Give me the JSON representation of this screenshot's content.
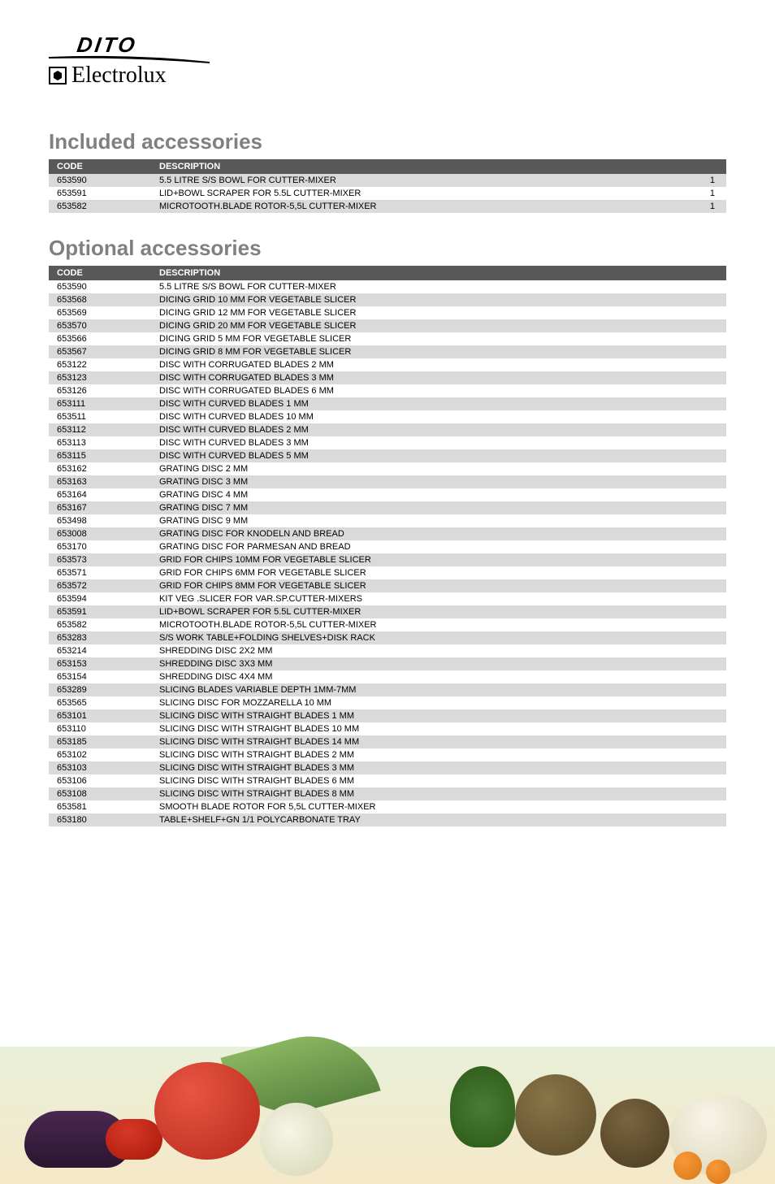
{
  "logo": {
    "dito": "DITO",
    "electrolux": "Electrolux"
  },
  "sections": {
    "included": {
      "title": "Included accessories",
      "columns": [
        "CODE",
        "DESCRIPTION"
      ],
      "rows": [
        {
          "code": "653590",
          "desc": "5.5 LITRE S/S BOWL FOR CUTTER-MIXER",
          "qty": "1"
        },
        {
          "code": "653591",
          "desc": "LID+BOWL SCRAPER FOR 5.5L CUTTER-MIXER",
          "qty": "1"
        },
        {
          "code": "653582",
          "desc": "MICROTOOTH.BLADE ROTOR-5,5L CUTTER-MIXER",
          "qty": "1"
        }
      ]
    },
    "optional": {
      "title": "Optional accessories",
      "columns": [
        "CODE",
        "DESCRIPTION"
      ],
      "rows": [
        {
          "code": "653590",
          "desc": "5.5 LITRE S/S BOWL FOR CUTTER-MIXER"
        },
        {
          "code": "653568",
          "desc": "DICING GRID 10 MM FOR VEGETABLE SLICER"
        },
        {
          "code": "653569",
          "desc": "DICING GRID 12 MM FOR VEGETABLE SLICER"
        },
        {
          "code": "653570",
          "desc": "DICING GRID 20 MM FOR VEGETABLE SLICER"
        },
        {
          "code": "653566",
          "desc": "DICING GRID 5 MM FOR VEGETABLE SLICER"
        },
        {
          "code": "653567",
          "desc": "DICING GRID 8 MM FOR VEGETABLE SLICER"
        },
        {
          "code": "653122",
          "desc": "DISC WITH CORRUGATED BLADES 2 MM"
        },
        {
          "code": "653123",
          "desc": "DISC WITH CORRUGATED BLADES 3 MM"
        },
        {
          "code": "653126",
          "desc": "DISC WITH CORRUGATED BLADES 6 MM"
        },
        {
          "code": "653111",
          "desc": "DISC WITH CURVED BLADES 1 MM"
        },
        {
          "code": "653511",
          "desc": "DISC WITH CURVED BLADES 10 MM"
        },
        {
          "code": "653112",
          "desc": "DISC WITH CURVED BLADES 2 MM"
        },
        {
          "code": "653113",
          "desc": "DISC WITH CURVED BLADES 3 MM"
        },
        {
          "code": "653115",
          "desc": "DISC WITH CURVED BLADES 5 MM"
        },
        {
          "code": "653162",
          "desc": "GRATING DISC 2 MM"
        },
        {
          "code": "653163",
          "desc": "GRATING DISC 3 MM"
        },
        {
          "code": "653164",
          "desc": "GRATING DISC 4 MM"
        },
        {
          "code": "653167",
          "desc": "GRATING DISC 7 MM"
        },
        {
          "code": "653498",
          "desc": "GRATING DISC 9 MM"
        },
        {
          "code": "653008",
          "desc": "GRATING DISC FOR KNODELN AND BREAD"
        },
        {
          "code": "653170",
          "desc": "GRATING DISC FOR PARMESAN AND BREAD"
        },
        {
          "code": "653573",
          "desc": "GRID FOR CHIPS 10MM FOR VEGETABLE SLICER"
        },
        {
          "code": "653571",
          "desc": "GRID FOR CHIPS 6MM FOR VEGETABLE SLICER"
        },
        {
          "code": "653572",
          "desc": "GRID FOR CHIPS 8MM FOR VEGETABLE SLICER"
        },
        {
          "code": "653594",
          "desc": "KIT VEG .SLICER FOR VAR.SP.CUTTER-MIXERS"
        },
        {
          "code": "653591",
          "desc": "LID+BOWL SCRAPER FOR 5.5L CUTTER-MIXER"
        },
        {
          "code": "653582",
          "desc": "MICROTOOTH.BLADE ROTOR-5,5L CUTTER-MIXER"
        },
        {
          "code": "653283",
          "desc": "S/S WORK TABLE+FOLDING SHELVES+DISK RACK"
        },
        {
          "code": "653214",
          "desc": "SHREDDING DISC 2X2 MM"
        },
        {
          "code": "653153",
          "desc": "SHREDDING DISC 3X3 MM"
        },
        {
          "code": "653154",
          "desc": "SHREDDING DISC 4X4 MM"
        },
        {
          "code": "653289",
          "desc": "SLICING BLADES VARIABLE DEPTH 1MM-7MM"
        },
        {
          "code": "653565",
          "desc": "SLICING DISC FOR MOZZARELLA 10 MM"
        },
        {
          "code": "653101",
          "desc": "SLICING DISC WITH STRAIGHT BLADES 1 MM"
        },
        {
          "code": "653110",
          "desc": "SLICING DISC WITH STRAIGHT BLADES 10 MM"
        },
        {
          "code": "653185",
          "desc": "SLICING DISC WITH STRAIGHT BLADES 14 MM"
        },
        {
          "code": "653102",
          "desc": "SLICING DISC WITH STRAIGHT BLADES 2 MM"
        },
        {
          "code": "653103",
          "desc": "SLICING DISC WITH STRAIGHT BLADES 3 MM"
        },
        {
          "code": "653106",
          "desc": "SLICING DISC WITH STRAIGHT BLADES 6 MM"
        },
        {
          "code": "653108",
          "desc": "SLICING DISC WITH STRAIGHT BLADES 8 MM"
        },
        {
          "code": "653581",
          "desc": "SMOOTH BLADE ROTOR FOR 5,5L CUTTER-MIXER"
        },
        {
          "code": "653180",
          "desc": "TABLE+SHELF+GN 1/1 POLYCARBONATE TRAY"
        }
      ]
    }
  },
  "styling": {
    "header_bg": "#585858",
    "header_color": "#ffffff",
    "row_alt_bg": "#d9dadb",
    "title_color": "#808080",
    "title_fontsize": 26,
    "cell_fontsize": 11
  }
}
